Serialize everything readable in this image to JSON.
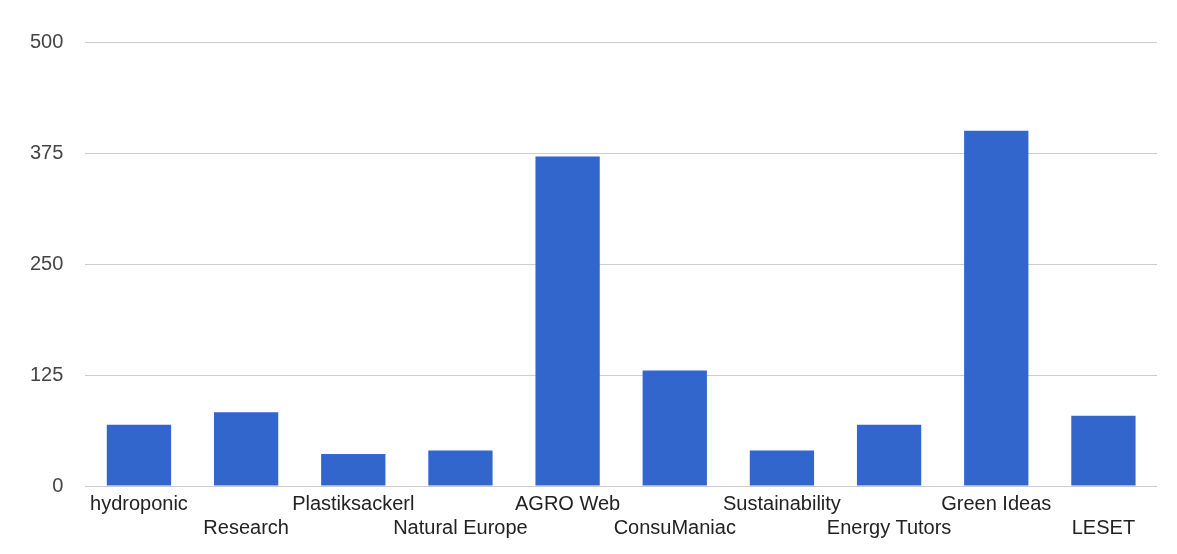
{
  "chart_data": {
    "type": "bar",
    "categories": [
      "hydroponic",
      "Research",
      "Plastiksackerl",
      "Natural Europe",
      "AGRO Web",
      "ConsuManiac",
      "Sustainability",
      "Energy Tutors",
      "Green Ideas",
      "LESET"
    ],
    "values": [
      69,
      83,
      36,
      40,
      371,
      130,
      40,
      69,
      400,
      79
    ],
    "color": "#3366cc",
    "ylim": [
      0,
      500
    ],
    "yticks": [
      0,
      125,
      250,
      375,
      500
    ],
    "grid": "y",
    "legend": false
  }
}
